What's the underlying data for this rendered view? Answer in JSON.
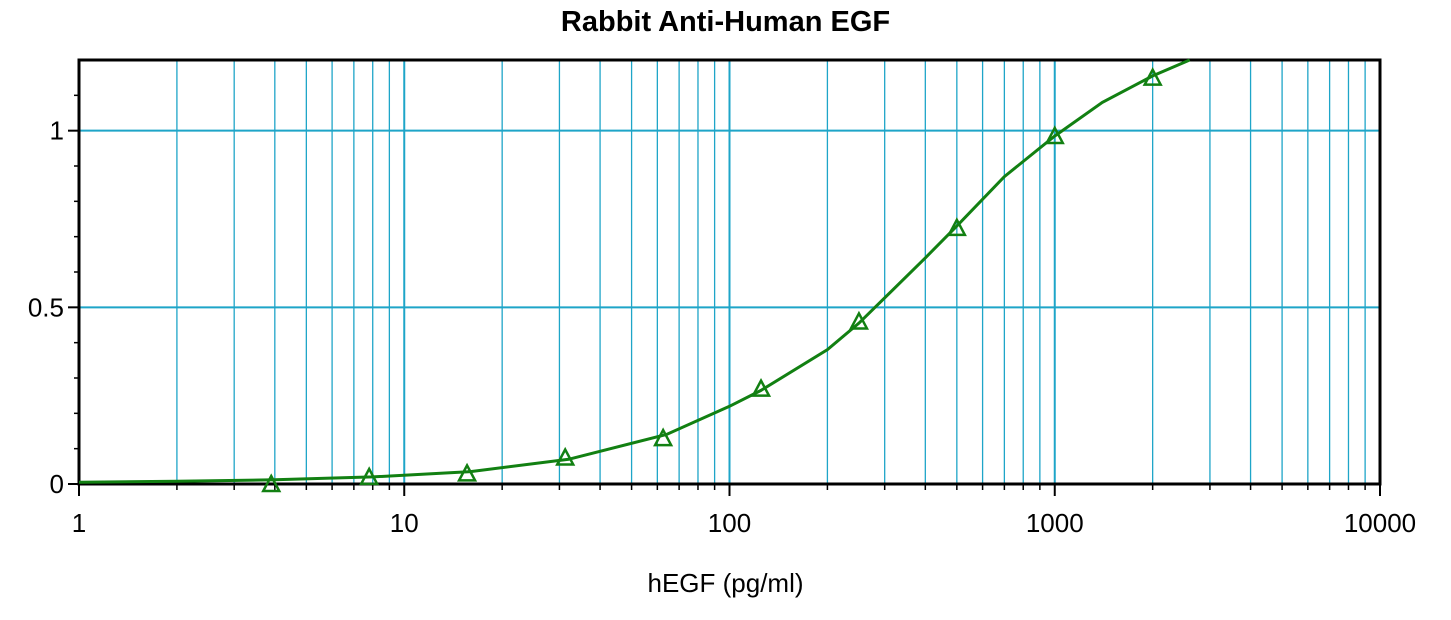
{
  "chart_data": {
    "type": "line",
    "title": "Rabbit Anti-Human EGF",
    "xlabel": "hEGF (pg/ml)",
    "ylabel": "",
    "xscale": "log",
    "xlim": [
      1,
      10000
    ],
    "ylim": [
      0,
      1.2
    ],
    "x_ticks": [
      "1",
      "10",
      "100",
      "1000",
      "10000"
    ],
    "y_ticks": [
      "0",
      "0.5",
      "1"
    ],
    "grid": true,
    "legend": "none",
    "series": [
      {
        "marker": "triangle",
        "color": "#128012",
        "x": [
          3.9,
          7.8,
          15.6,
          31.25,
          62.5,
          125,
          250,
          500,
          1000,
          2000
        ],
        "y": [
          0.0,
          0.02,
          0.03,
          0.075,
          0.13,
          0.27,
          0.46,
          0.725,
          0.985,
          1.15
        ]
      }
    ],
    "fit_curve": {
      "color": "#128012",
      "x": [
        1,
        2,
        4,
        8,
        16,
        32,
        64,
        100,
        125,
        200,
        250,
        400,
        500,
        700,
        1000,
        1400,
        2000,
        2600
      ],
      "y": [
        0.005,
        0.008,
        0.012,
        0.02,
        0.035,
        0.07,
        0.14,
        0.22,
        0.265,
        0.38,
        0.455,
        0.64,
        0.73,
        0.87,
        0.985,
        1.08,
        1.155,
        1.2
      ]
    },
    "colors": {
      "grid": "#1ea5c8",
      "series": "#128012",
      "axis": "#000000"
    }
  }
}
